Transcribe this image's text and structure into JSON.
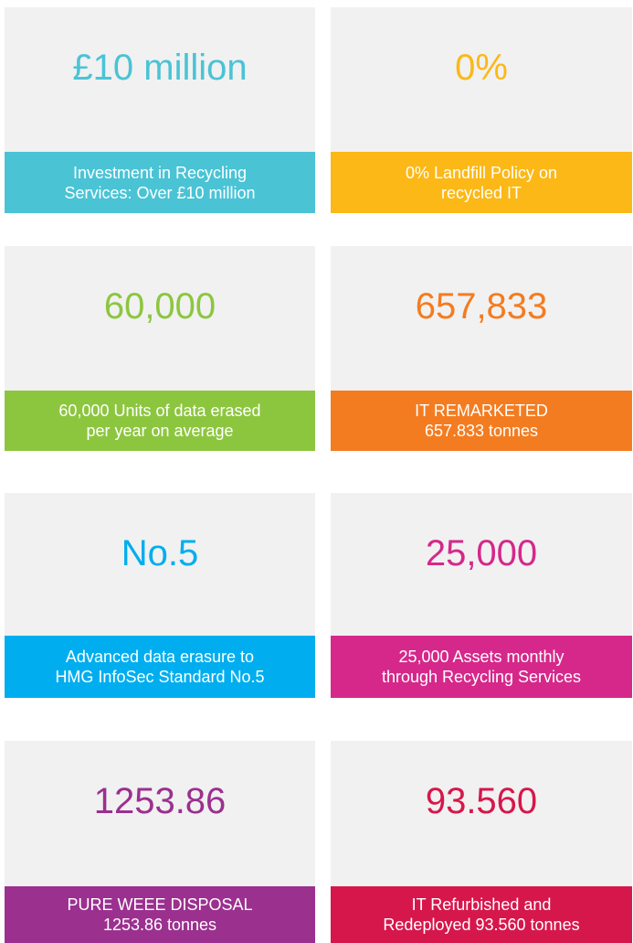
{
  "cards": [
    {
      "value": "£10 million",
      "caption": [
        "Investment in Recycling",
        "Services: Over £10 million"
      ],
      "color": "#4ac3d5"
    },
    {
      "value": "0%",
      "caption": [
        "0% Landfill Policy on",
        "recycled IT"
      ],
      "color": "#fbb817"
    },
    {
      "value": "60,000",
      "caption": [
        "60,000 Units of data erased",
        "per year on average"
      ],
      "color": "#8cc63f"
    },
    {
      "value": "657,833",
      "caption": [
        "IT REMARKETED",
        "657.833 tonnes"
      ],
      "color": "#f47c20"
    },
    {
      "value": "No.5",
      "caption": [
        "Advanced data erasure to",
        "HMG InfoSec Standard No.5"
      ],
      "color": "#00aeef"
    },
    {
      "value": "25,000",
      "caption": [
        "25,000 Assets monthly",
        "through Recycling Services"
      ],
      "color": "#d5288a"
    },
    {
      "value": "1253.86",
      "caption": [
        "PURE WEEE DISPOSAL",
        "1253.86 tonnes"
      ],
      "color": "#9b308f"
    },
    {
      "value": "93.560",
      "caption": [
        "IT Refurbished and",
        "Redeployed 93.560 tonnes"
      ],
      "color": "#d6174c"
    }
  ]
}
